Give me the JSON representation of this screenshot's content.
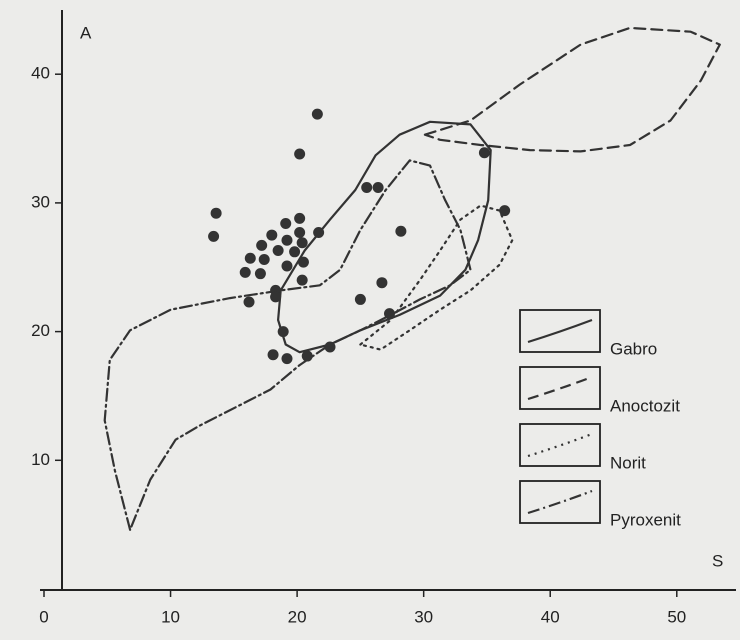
{
  "chart_data": {
    "type": "scatter",
    "x_label": "S",
    "y_label": "A",
    "xlim": [
      0,
      54.6
    ],
    "ylim": [
      0,
      44.6
    ],
    "xticks": [
      0,
      10,
      20,
      30,
      40,
      50
    ],
    "yticks": [
      10,
      20,
      30,
      40
    ],
    "points": {
      "color": "#333333",
      "x": [
        21.6,
        20.2,
        25.5,
        26.4,
        34.8,
        13.6,
        13.4,
        36.4,
        19.1,
        20.2,
        20.2,
        18.0,
        19.2,
        20.4,
        21.7,
        17.2,
        18.5,
        19.8,
        16.3,
        17.4,
        15.9,
        17.1,
        19.2,
        20.5,
        20.4,
        18.3,
        18.3,
        16.2,
        26.7,
        25.0,
        28.2,
        27.3,
        18.9,
        18.1,
        19.2,
        20.8,
        22.6
      ],
      "y": [
        36.9,
        33.8,
        31.2,
        31.2,
        33.9,
        29.2,
        27.4,
        29.4,
        28.4,
        28.8,
        27.7,
        27.5,
        27.1,
        26.9,
        27.7,
        26.7,
        26.3,
        26.2,
        25.7,
        25.6,
        24.6,
        24.5,
        25.1,
        25.4,
        24.0,
        23.2,
        22.7,
        22.3,
        23.8,
        22.5,
        27.8,
        21.4,
        20.0,
        18.2,
        17.9,
        18.1,
        18.8
      ]
    },
    "series": [
      {
        "name": "Gabro",
        "color": "#333333",
        "style": "solid",
        "x": [
          18.7,
          20.6,
          22.6,
          24.6,
          26.2,
          28.1,
          30.5,
          33.7,
          35.3,
          35.1,
          34.3,
          33.3,
          31.3,
          28.1,
          25.0,
          22.6,
          20.2,
          19.1,
          18.5
        ],
        "y": [
          23.2,
          26.3,
          28.7,
          31.0,
          33.7,
          35.3,
          36.3,
          36.1,
          34.1,
          30.2,
          27.1,
          24.8,
          22.8,
          21.3,
          20.1,
          19.0,
          18.4,
          19.0,
          20.9
        ]
      },
      {
        "name": "Anoctozit",
        "color": "#333333",
        "style": "dashed",
        "x": [
          30.1,
          33.7,
          37.6,
          42.4,
          46.3,
          51.1,
          53.4,
          51.9,
          49.5,
          46.3,
          42.4,
          38.4,
          34.5,
          31.3
        ],
        "y": [
          35.3,
          36.4,
          39.2,
          42.3,
          43.6,
          43.3,
          42.3,
          39.5,
          36.4,
          34.5,
          34.0,
          34.1,
          34.5,
          34.9
        ]
      },
      {
        "name": "Norit",
        "color": "#333333",
        "style": "dotted",
        "x": [
          25.0,
          27.4,
          29.7,
          31.3,
          32.9,
          34.5,
          36.0,
          37.0,
          36.0,
          33.7,
          31.3,
          28.9,
          26.6
        ],
        "y": [
          19.0,
          20.9,
          24.0,
          26.3,
          28.7,
          29.8,
          29.4,
          27.1,
          25.2,
          23.2,
          21.7,
          20.1,
          18.6
        ]
      },
      {
        "name": "Pyroxenit",
        "color": "#333333",
        "style": "dashdot",
        "x": [
          6.8,
          5.6,
          4.8,
          5.2,
          6.8,
          10.0,
          14.7,
          18.7,
          21.8,
          23.4,
          25.0,
          27.0,
          28.9,
          30.5,
          31.7,
          32.9,
          33.7,
          32.1,
          29.7,
          27.4,
          25.0,
          22.6,
          20.2,
          17.9,
          15.5,
          12.3,
          10.4,
          8.4
        ],
        "y": [
          4.6,
          9.2,
          13.1,
          17.8,
          20.1,
          21.7,
          22.6,
          23.2,
          23.6,
          24.8,
          27.9,
          31.0,
          33.3,
          32.9,
          30.2,
          27.9,
          24.8,
          23.6,
          22.5,
          21.3,
          20.1,
          19.0,
          17.4,
          15.5,
          14.3,
          12.7,
          11.6,
          8.5
        ]
      }
    ]
  }
}
